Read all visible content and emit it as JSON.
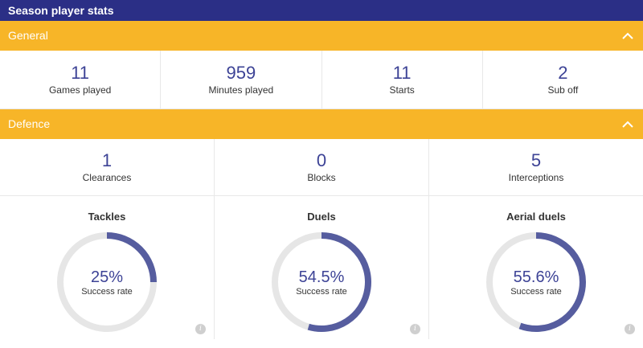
{
  "page": {
    "title": "Season player stats"
  },
  "general": {
    "title": "General",
    "stats": [
      {
        "value": "11",
        "label": "Games played"
      },
      {
        "value": "959",
        "label": "Minutes played"
      },
      {
        "value": "11",
        "label": "Starts"
      },
      {
        "value": "2",
        "label": "Sub off"
      }
    ]
  },
  "defence": {
    "title": "Defence",
    "stats": [
      {
        "value": "1",
        "label": "Clearances"
      },
      {
        "value": "0",
        "label": "Blocks"
      },
      {
        "value": "5",
        "label": "Interceptions"
      }
    ],
    "rates": [
      {
        "title": "Tackles",
        "percent_text": "25%",
        "sublabel": "Success rate",
        "fraction": 0.25
      },
      {
        "title": "Duels",
        "percent_text": "54.5%",
        "sublabel": "Success rate",
        "fraction": 0.545
      },
      {
        "title": "Aerial duels",
        "percent_text": "55.6%",
        "sublabel": "Success rate",
        "fraction": 0.556
      }
    ]
  },
  "icons": {
    "collapse": "chevron-up-icon",
    "info": "info-icon"
  },
  "info_glyph": "i",
  "colors": {
    "topbar": "#2b2f86",
    "section": "#f7b528",
    "accent": "#565d9f",
    "track": "#e6e6e6",
    "value": "#3d4396"
  }
}
